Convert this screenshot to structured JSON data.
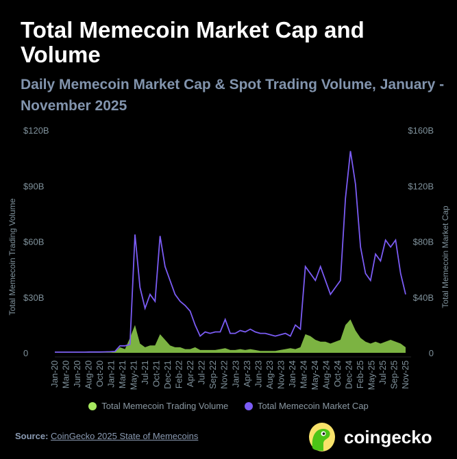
{
  "title": "Total Memecoin Market Cap and Volume",
  "subtitle": "Daily Memecoin Market Cap & Spot Trading Volume, January - November 2025",
  "chart_data": {
    "type": "area+line",
    "x": [
      "Jan-20",
      "Feb-20",
      "Mar-20",
      "Apr-20",
      "May-20",
      "Jun-20",
      "Jul-20",
      "Aug-20",
      "Sep-20",
      "Oct-20",
      "Nov-20",
      "Dec-20",
      "Jan-21",
      "Feb-21",
      "Mar-21",
      "Apr-21",
      "May-21",
      "Jun-21",
      "Jul-21",
      "Aug-21",
      "Sep-21",
      "Oct-21",
      "Nov-21",
      "Dec-21",
      "Jan-22",
      "Feb-22",
      "Mar-22",
      "Apr-22",
      "May-22",
      "Jun-22",
      "Jul-22",
      "Aug-22",
      "Sep-22",
      "Oct-22",
      "Nov-22",
      "Dec-22",
      "Jan-23",
      "Feb-23",
      "Mar-23",
      "Apr-23",
      "May-23",
      "Jun-23",
      "Jul-23",
      "Aug-23",
      "Sep-23",
      "Oct-23",
      "Nov-23",
      "Dec-23",
      "Jan-24",
      "Feb-24",
      "Mar-24",
      "Apr-24",
      "May-24",
      "Jun-24",
      "Jul-24",
      "Aug-24",
      "Sep-24",
      "Oct-24",
      "Nov-24",
      "Dec-24",
      "Jan-25",
      "Feb-25",
      "Mar-25",
      "Apr-25",
      "May-25",
      "Jun-25",
      "Jul-25",
      "Aug-25",
      "Sep-25",
      "Oct-25",
      "Nov-25"
    ],
    "xtick_labels": [
      "Jan-20",
      "Mar-20",
      "Jun-20",
      "Aug-20",
      "Oct-20",
      "Jan-21",
      "Mar-21",
      "May-21",
      "Jul-21",
      "Oct-21",
      "Dec-21",
      "Feb-22",
      "Apr-22",
      "Jul-22",
      "Sep-22",
      "Nov-22",
      "Jan-23",
      "Apr-23",
      "Jun-23",
      "Aug-23",
      "Nov-23",
      "Jan-24",
      "Mar-24",
      "May-24",
      "Aug-24",
      "Oct-24",
      "Dec-24",
      "Feb-25",
      "May-25",
      "Jul-25",
      "Sep-25",
      "Nov-25"
    ],
    "series": [
      {
        "name": "Total Memecoin Trading Volume",
        "axis": "left",
        "type": "area",
        "color": "#7cb342",
        "values": [
          0.1,
          0.1,
          0.1,
          0.1,
          0.1,
          0.1,
          0.1,
          0.1,
          0.1,
          0.1,
          0.1,
          0.2,
          0.5,
          3,
          2,
          8,
          15,
          5,
          3,
          4,
          4,
          10,
          7,
          4,
          3,
          3,
          2,
          2,
          3,
          1.5,
          1.5,
          1.5,
          1.5,
          2,
          2.5,
          1.5,
          1.5,
          2,
          1.5,
          2,
          1.5,
          1,
          1,
          1,
          1,
          1.5,
          2,
          2.5,
          2,
          3,
          10,
          9,
          7,
          6,
          6,
          5,
          6,
          7,
          15,
          18,
          12,
          8,
          6,
          5,
          6,
          5,
          6,
          7,
          6,
          5,
          3
        ]
      },
      {
        "name": "Total Memecoin Market Cap",
        "axis": "right",
        "type": "line",
        "color": "#7b5cf5",
        "values": [
          0.5,
          0.5,
          0.5,
          0.5,
          0.5,
          0.5,
          0.5,
          0.6,
          0.6,
          0.6,
          0.7,
          0.8,
          1,
          5,
          5,
          6,
          85,
          47,
          32,
          42,
          37,
          84,
          62,
          52,
          42,
          37,
          34,
          30,
          20,
          12,
          15,
          14,
          15,
          15,
          24,
          14,
          14,
          16,
          15,
          17,
          15,
          14,
          14,
          13,
          12,
          13,
          14,
          12,
          20,
          17,
          62,
          57,
          52,
          62,
          52,
          42,
          47,
          52,
          111,
          145,
          121,
          76,
          57,
          52,
          71,
          66,
          81,
          76,
          81,
          57,
          42
        ]
      }
    ],
    "left_axis": {
      "label": "Total Memecoin Trading Volume",
      "range": [
        0,
        120
      ],
      "ticks": [
        "0",
        "$30B",
        "$60B",
        "$90B",
        "$120B"
      ]
    },
    "right_axis": {
      "label": "Total Memecoin Market Cap",
      "range": [
        0,
        160
      ],
      "ticks": [
        "0",
        "$40B",
        "$80B",
        "$120B",
        "$160B"
      ]
    },
    "grid": false,
    "legend": "bottom"
  },
  "source": {
    "label": "Source:",
    "link": "CoinGecko 2025 State of Memecoins"
  },
  "logo": {
    "text": "coingecko"
  }
}
